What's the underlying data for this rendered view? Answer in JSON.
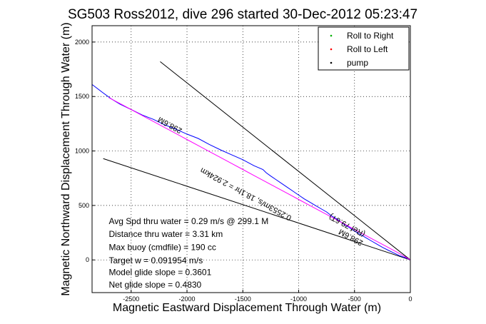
{
  "chart_data": {
    "type": "line",
    "title": "SG503 Ross2012, dive 296 started 30-Dec-2012 05:23:47",
    "xlabel": "Magnetic Eastward Displacement Through Water (m)",
    "ylabel": "Magnetic Northward Displacement Through Water (m)",
    "xlim": [
      -2850,
      0
    ],
    "ylim": [
      -300,
      2150
    ],
    "x_ticks": [
      -2500,
      -2000,
      -1500,
      -1000,
      -500,
      0
    ],
    "y_ticks": [
      0,
      500,
      1000,
      1500,
      2000
    ],
    "grid": true,
    "legend_position": "top-right",
    "legend": [
      {
        "label": "Roll to Right",
        "color": "#00b000",
        "marker": "dot"
      },
      {
        "label": "Roll to Left",
        "color": "#ff0000",
        "marker": "dot"
      },
      {
        "label": "pump",
        "color": "#000000",
        "marker": "dot"
      }
    ],
    "series": [
      {
        "color": "#0000ff",
        "x": [
          -2850,
          -2760,
          -2680,
          -2600,
          -2500,
          -2400,
          -2300,
          -2200,
          -2100,
          -2000,
          -1900,
          -1800,
          -1700,
          -1600,
          -1500,
          -1400,
          -1320,
          -1290,
          -1250,
          -1200,
          -1150,
          -1100,
          -1050,
          -1000,
          -950,
          -900,
          -850,
          -800,
          -750,
          -700,
          -650,
          -600,
          -550,
          -500,
          -450,
          -400,
          -350,
          -300,
          -250,
          -200,
          -150,
          -100,
          -60,
          -30,
          0
        ],
        "y": [
          1610,
          1540,
          1480,
          1430,
          1380,
          1330,
          1290,
          1240,
          1200,
          1155,
          1115,
          1060,
          1010,
          965,
          920,
          865,
          830,
          800,
          770,
          735,
          700,
          665,
          630,
          595,
          560,
          530,
          500,
          470,
          440,
          400,
          370,
          330,
          300,
          265,
          235,
          205,
          175,
          145,
          115,
          90,
          65,
          40,
          25,
          15,
          0
        ]
      },
      {
        "color": "#ff00ff",
        "x": [
          -2700,
          -2600,
          -2500,
          -2400,
          -2300,
          -2200,
          -2100,
          -2000,
          -1900,
          -1800,
          -1700,
          -1600,
          -1500,
          -1400,
          -1300,
          -1200,
          -1100,
          -1000,
          -900,
          -800,
          -700,
          -600,
          -500,
          -400,
          -300,
          -200,
          -100,
          0
        ],
        "y": [
          1490,
          1435,
          1380,
          1325,
          1270,
          1215,
          1160,
          1105,
          1050,
          995,
          940,
          885,
          830,
          775,
          720,
          665,
          610,
          555,
          500,
          445,
          390,
          335,
          280,
          225,
          170,
          115,
          60,
          0
        ]
      }
    ],
    "reference_lines": [
      {
        "x": [
          -2240,
          0
        ],
        "y": [
          1820,
          0
        ],
        "color": "#000000",
        "label": "0.3601"
      },
      {
        "x": [
          -2750,
          0
        ],
        "y": [
          930,
          0
        ],
        "color": "#000000",
        "label": "0.4830"
      }
    ],
    "annotations": [
      {
        "text": "298.6M",
        "x": -2040,
        "y": 1200,
        "angle": 208.5
      },
      {
        "text": "0.2553m/s, 18.1hr = 2.924km",
        "x": -1060,
        "y": 400,
        "angle": 208.5
      },
      {
        "text": "298.6M",
        "x": -420,
        "y": 170,
        "angle": 208.5
      },
      {
        "text": "(Ref 79.6T)",
        "x": -400,
        "y": 250,
        "angle": 208.5
      },
      {
        "text": "Avg Spd thru water =  0.29 m/s @ 299.1 M",
        "x": -2700,
        "y": 330,
        "angle": 0
      },
      {
        "text": "Distance thru water =  3.31 km",
        "x": -2700,
        "y": 210,
        "angle": 0
      },
      {
        "text": "Max buoy (cmdfile) = 190 cc",
        "x": -2700,
        "y": 90,
        "angle": 0
      },
      {
        "text": "Target w = 0.091954 m/s",
        "x": -2700,
        "y": -30,
        "angle": 0
      },
      {
        "text": "Model glide slope = 0.3601",
        "x": -2700,
        "y": -140,
        "angle": 0
      },
      {
        "text": "Net glide slope = 0.4830",
        "x": -2700,
        "y": -255,
        "angle": 0
      }
    ]
  }
}
